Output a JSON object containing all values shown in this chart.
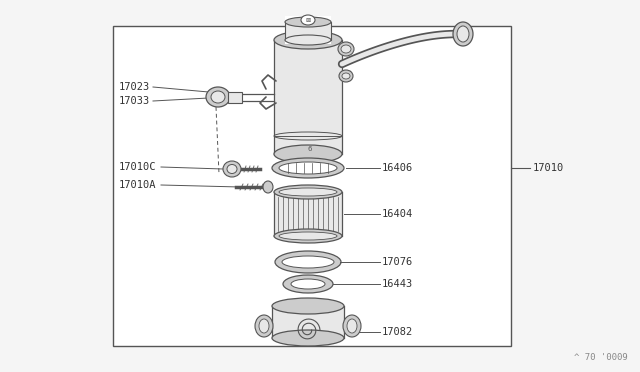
{
  "bg_color": "#f5f5f5",
  "box_color": "#555555",
  "line_color": "#555555",
  "dark_color": "#333333",
  "fill_light": "#e8e8e8",
  "fill_mid": "#cccccc",
  "fill_dark": "#aaaaaa",
  "title_bottom": "^ 70 '0009",
  "label_17023": "17023",
  "label_17033": "17033",
  "label_17010C": "17010C",
  "label_17010A": "17010A",
  "label_16406": "16406",
  "label_16404": "16404",
  "label_17076": "17076",
  "label_16443": "16443",
  "label_17082": "17082",
  "label_17010": "17010",
  "font_size": 7.5
}
